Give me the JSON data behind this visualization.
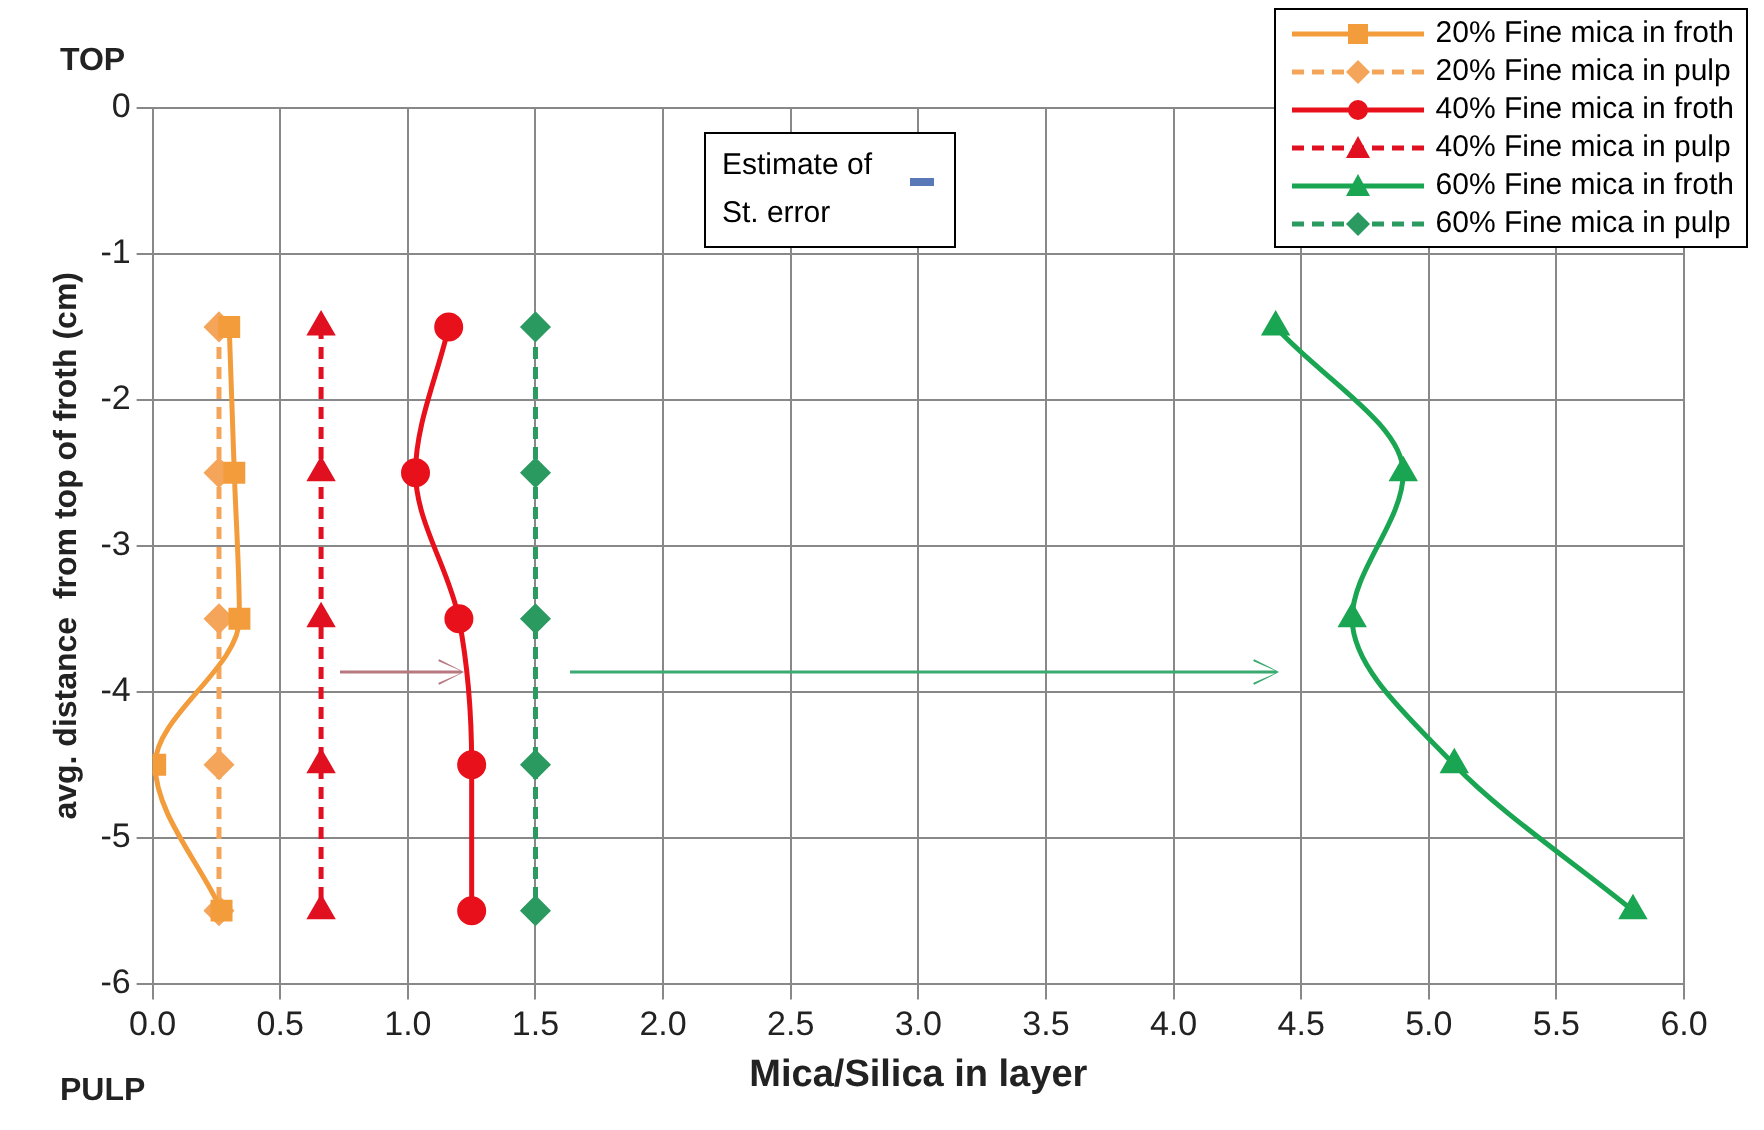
{
  "chart_data": {
    "type": "line",
    "xlabel": "Mica/Silica in layer",
    "ylabel": "avg. distance  from top of froth (cm)",
    "xlim": [
      0,
      6
    ],
    "xticks": [
      {
        "value": 0,
        "label": "0.0"
      },
      {
        "value": 0.5,
        "label": "0.5"
      },
      {
        "value": 1,
        "label": "1.0"
      },
      {
        "value": 1.5,
        "label": "1.5"
      },
      {
        "value": 2,
        "label": "2.0"
      },
      {
        "value": 2.5,
        "label": "2.5"
      },
      {
        "value": 3,
        "label": "3.0"
      },
      {
        "value": 3.5,
        "label": "3.5"
      },
      {
        "value": 4,
        "label": "4.0"
      },
      {
        "value": 4.5,
        "label": "4.5"
      },
      {
        "value": 5,
        "label": "5.0"
      },
      {
        "value": 5.5,
        "label": "5.5"
      },
      {
        "value": 6,
        "label": "6.0"
      }
    ],
    "ylim": [
      -6,
      0
    ],
    "yticks": [
      0,
      -1,
      -2,
      -3,
      -4,
      -5,
      -6
    ],
    "grid": true,
    "legend": "top right",
    "annotations": [
      "TOP",
      "PULP",
      "Estimate of St. error"
    ],
    "series": [
      {
        "name": "20% Fine mica in froth",
        "color": "#f39c3c",
        "marker": "square",
        "line_style": "solid",
        "x": [
          0.3,
          0.32,
          0.34,
          0.01,
          0.27
        ],
        "values": [
          -1.5,
          -2.5,
          -3.5,
          -4.5,
          -5.5
        ]
      },
      {
        "name": "20% Fine mica in pulp",
        "color": "#f5a55a",
        "marker": "diamond",
        "line_style": "dashed",
        "x": [
          0.26,
          0.26,
          0.26,
          0.26,
          0.26
        ],
        "values": [
          -1.5,
          -2.5,
          -3.5,
          -4.5,
          -5.5
        ]
      },
      {
        "name": "40% Fine mica in froth",
        "color": "#e8101a",
        "marker": "circle",
        "line_style": "solid",
        "x": [
          1.16,
          1.03,
          1.2,
          1.25,
          1.25
        ],
        "values": [
          -1.5,
          -2.5,
          -3.5,
          -4.5,
          -5.5
        ]
      },
      {
        "name": "40% Fine mica in pulp",
        "color": "#e01020",
        "marker": "triangle",
        "line_style": "dashed",
        "x": [
          0.66,
          0.66,
          0.66,
          0.66,
          0.66
        ],
        "values": [
          -1.5,
          -2.5,
          -3.5,
          -4.5,
          -5.5
        ]
      },
      {
        "name": "60% Fine mica in froth",
        "color": "#1aa552",
        "marker": "triangle",
        "line_style": "solid",
        "x": [
          4.4,
          4.9,
          4.7,
          5.1,
          5.8
        ],
        "values": [
          -1.5,
          -2.5,
          -3.5,
          -4.5,
          -5.5
        ]
      },
      {
        "name": "60% Fine mica in pulp",
        "color": "#2a9a60",
        "marker": "diamond",
        "line_style": "dashed",
        "x": [
          1.5,
          1.5,
          1.5,
          1.5,
          1.5
        ],
        "values": [
          -1.5,
          -2.5,
          -3.5,
          -4.5,
          -5.5
        ]
      }
    ]
  }
}
